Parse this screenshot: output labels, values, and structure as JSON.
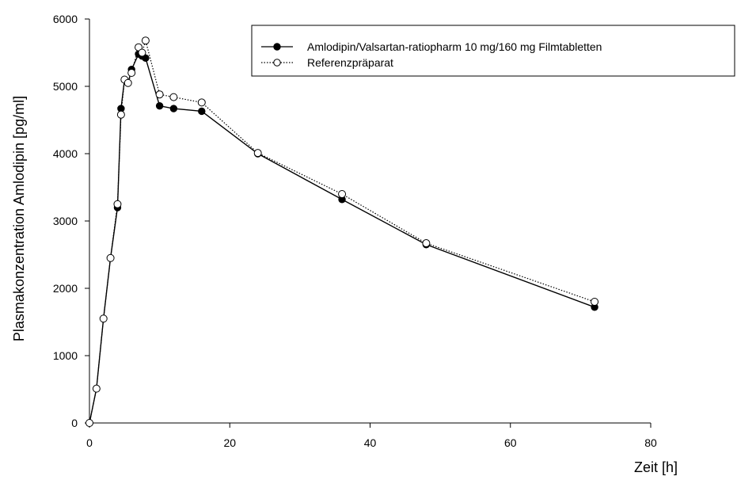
{
  "chart_data": {
    "type": "line",
    "title": "",
    "xlabel": "Zeit [h]",
    "ylabel": "Plasmakonzentration Amlodipin [pg/ml]",
    "xlim": [
      0,
      80
    ],
    "ylim": [
      0,
      6000
    ],
    "x_ticks": [
      0,
      20,
      40,
      60,
      80
    ],
    "y_ticks": [
      0,
      1000,
      2000,
      3000,
      4000,
      5000,
      6000
    ],
    "grid": false,
    "legend_position": "top-right",
    "series": [
      {
        "name": "Amlodipin/Valsartan-ratiopharm 10 mg/160 mg Filmtabletten",
        "marker": "filled-circle",
        "line": "solid",
        "color": "#000000",
        "x": [
          0,
          1,
          2,
          3,
          4,
          4.5,
          5,
          5.5,
          6,
          7,
          7.5,
          8,
          10,
          12,
          16,
          24,
          36,
          48,
          72
        ],
        "y": [
          0,
          510,
          1550,
          2450,
          3200,
          4670,
          5100,
          5050,
          5250,
          5480,
          5450,
          5420,
          4710,
          4670,
          4630,
          4000,
          3320,
          2650,
          1720
        ]
      },
      {
        "name": "Referenzpräparat",
        "marker": "open-circle",
        "line": "dotted",
        "color": "#000000",
        "x": [
          0,
          1,
          2,
          3,
          4,
          4.5,
          5,
          5.5,
          6,
          7,
          7.5,
          8,
          10,
          12,
          16,
          24,
          36,
          48,
          72
        ],
        "y": [
          0,
          510,
          1550,
          2450,
          3250,
          4580,
          5100,
          5050,
          5200,
          5580,
          5500,
          5680,
          4880,
          4840,
          4760,
          4010,
          3400,
          2670,
          1800
        ]
      }
    ]
  }
}
